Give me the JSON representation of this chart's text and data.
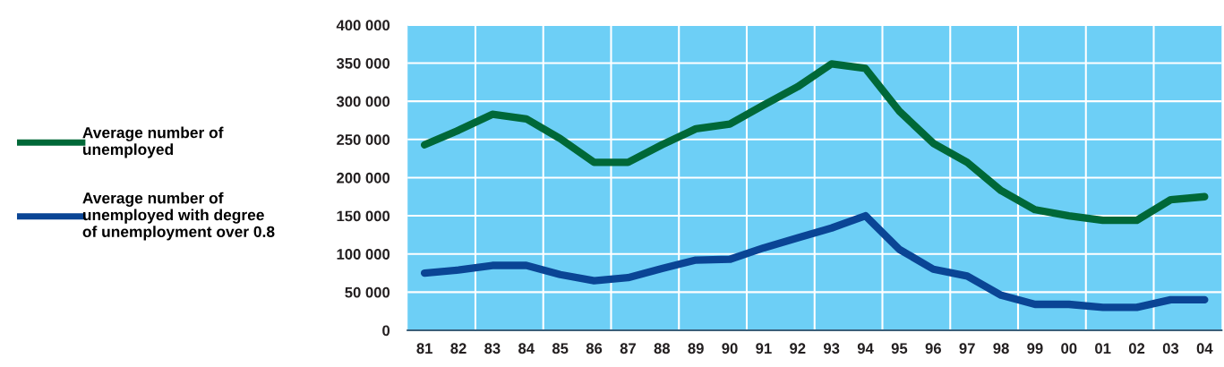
{
  "chart_data": {
    "type": "line",
    "categories": [
      "81",
      "82",
      "83",
      "84",
      "85",
      "86",
      "87",
      "88",
      "89",
      "90",
      "91",
      "92",
      "93",
      "94",
      "95",
      "96",
      "97",
      "98",
      "99",
      "00",
      "01",
      "02",
      "03",
      "04"
    ],
    "series": [
      {
        "name": "Average number of\nunemployed",
        "color": "#006838",
        "values": [
          243000,
          262000,
          283000,
          277000,
          251000,
          220000,
          220000,
          243000,
          264000,
          270000,
          295000,
          319000,
          349000,
          343000,
          287000,
          245000,
          220000,
          183000,
          158000,
          150000,
          144000,
          144000,
          171000,
          175000
        ]
      },
      {
        "name": "Average number of\nunemployed with degree\nof unemployment over 0.8",
        "color": "#0a4595",
        "values": [
          75000,
          79000,
          85000,
          85000,
          73000,
          65000,
          69000,
          81000,
          92000,
          93000,
          108000,
          121000,
          134000,
          150000,
          106000,
          80000,
          71000,
          46000,
          34000,
          34000,
          30000,
          30000,
          40000,
          40000
        ]
      }
    ],
    "ylim": [
      0,
      400000
    ],
    "yticks": [
      0,
      {
        "value": 50000,
        "label": "50 000"
      },
      {
        "value": 100000,
        "label": "100 000"
      },
      {
        "value": 150000,
        "label": "150 000"
      },
      {
        "value": 200000,
        "label": "200 000"
      },
      {
        "value": 250000,
        "label": "250 000"
      },
      {
        "value": 300000,
        "label": "300 000"
      },
      {
        "value": 350000,
        "label": "350 000"
      },
      {
        "value": 400000,
        "label": "400 000"
      }
    ],
    "grid": true,
    "legend": "left",
    "marker": "none",
    "line_style": "solid"
  }
}
